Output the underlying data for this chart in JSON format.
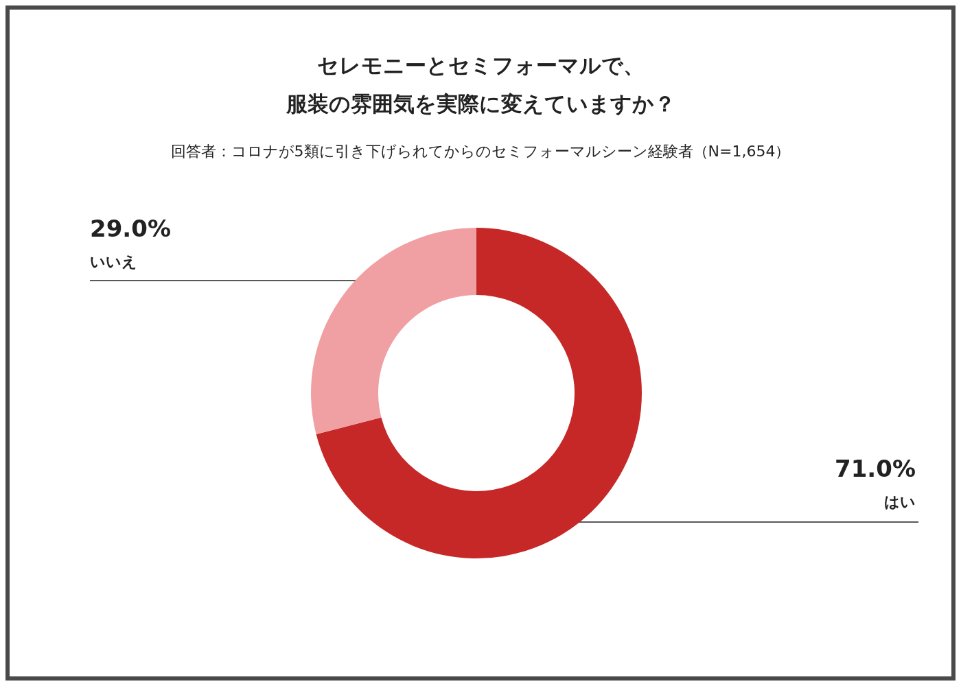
{
  "chart_data": {
    "type": "donut",
    "title": "セレモニーとセミフォーマルで、服装の雰囲気を実際に変えていますか？",
    "subtitle": "回答者：コロナが5類に引き下げられてからのセミフォーマルシーン経験者（N=1,654）",
    "categories": [
      "はい",
      "いいえ"
    ],
    "values": [
      71.0,
      29.0
    ],
    "colors": [
      "#c62828",
      "#f0a0a3"
    ],
    "value_labels": [
      "71.0%",
      "29.0%"
    ]
  }
}
